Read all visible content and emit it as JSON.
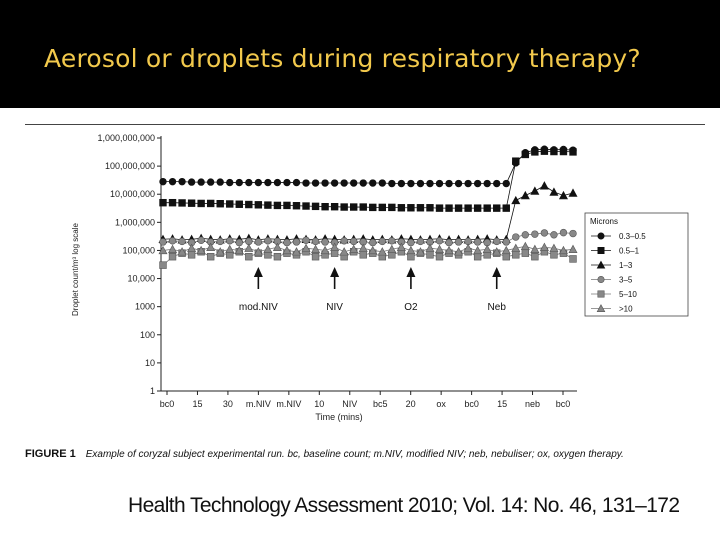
{
  "slide": {
    "title": "Aerosol or droplets during respiratory therapy?",
    "caption_label": "FIGURE 1",
    "caption_text": "Example of coryzal subject experimental run. bc, baseline count; m.NIV, modified NIV; neb, nebuliser; ox, oxygen therapy.",
    "citation": "Health Technology Assessment 2010; Vol. 14: No. 46, 131–172"
  },
  "chart_data": {
    "type": "line",
    "xlabel": "Time (mins)",
    "ylabel": "Droplet count/m³ log scale",
    "y_scale": "log",
    "ylim": [
      1,
      1000000000
    ],
    "y_ticks": [
      "1",
      "10",
      "100",
      "1000",
      "10,000",
      "100,000",
      "1,000,000",
      "10,000,000",
      "100,000,000",
      "1,000,000,000"
    ],
    "x_ticks": [
      "bc0",
      "15",
      "30",
      "m.NIV",
      "m.NIV",
      "10",
      "NIV",
      "bc5",
      "20",
      "ox",
      "bc0",
      "15",
      "neb",
      "bc0"
    ],
    "legend": {
      "title": "Microns",
      "position": "right",
      "entries": [
        "0.3–0.5",
        "0.5–1",
        "1–3",
        "3–5",
        "5–10",
        ">10"
      ]
    },
    "annotations": [
      {
        "label": "mod.NIV",
        "x": 10
      },
      {
        "label": "NIV",
        "x": 18
      },
      {
        "label": "O2",
        "x": 26
      },
      {
        "label": "Neb",
        "x": 35
      }
    ],
    "series": [
      {
        "name": "0.3–0.5",
        "marker": "circle",
        "color": "#111111",
        "values": [
          28000000,
          28000000,
          28000000,
          27000000,
          27000000,
          27000000,
          27000000,
          26000000,
          26000000,
          26000000,
          26000000,
          26000000,
          26000000,
          26000000,
          26000000,
          25000000,
          25000000,
          25000000,
          25000000,
          25000000,
          25000000,
          25000000,
          25000000,
          25000000,
          24000000,
          24000000,
          24000000,
          24000000,
          24000000,
          24000000,
          24000000,
          24000000,
          24000000,
          24000000,
          24000000,
          24000000,
          24000000,
          130000000,
          300000000,
          380000000,
          400000000,
          380000000,
          390000000,
          370000000
        ]
      },
      {
        "name": "0.5–1",
        "marker": "square",
        "color": "#111111",
        "values": [
          5000000,
          5000000,
          4900000,
          4800000,
          4700000,
          4700000,
          4600000,
          4500000,
          4400000,
          4300000,
          4200000,
          4100000,
          4000000,
          4000000,
          3900000,
          3800000,
          3700000,
          3600000,
          3600000,
          3500000,
          3500000,
          3500000,
          3400000,
          3400000,
          3400000,
          3300000,
          3300000,
          3300000,
          3300000,
          3200000,
          3200000,
          3200000,
          3200000,
          3200000,
          3200000,
          3200000,
          3200000,
          150000000,
          260000000,
          320000000,
          340000000,
          330000000,
          330000000,
          320000000
        ]
      },
      {
        "name": "1–3",
        "marker": "triangle",
        "color": "#111111",
        "values": [
          250000,
          260000,
          240000,
          250000,
          270000,
          250000,
          240000,
          260000,
          250000,
          270000,
          240000,
          260000,
          250000,
          240000,
          260000,
          250000,
          240000,
          260000,
          250000,
          240000,
          250000,
          260000,
          240000,
          250000,
          240000,
          260000,
          250000,
          240000,
          250000,
          260000,
          240000,
          250000,
          240000,
          250000,
          260000,
          240000,
          250000,
          6000000,
          9000000,
          13000000,
          20000000,
          12000000,
          9000000,
          11000000
        ]
      },
      {
        "name": "3–5",
        "marker": "circle",
        "color": "#888888",
        "values": [
          200000,
          220000,
          210000,
          190000,
          230000,
          200000,
          210000,
          220000,
          190000,
          210000,
          200000,
          220000,
          210000,
          190000,
          200000,
          230000,
          210000,
          200000,
          190000,
          220000,
          210000,
          200000,
          190000,
          210000,
          220000,
          200000,
          190000,
          210000,
          200000,
          220000,
          190000,
          200000,
          210000,
          200000,
          190000,
          210000,
          200000,
          300000,
          360000,
          380000,
          420000,
          360000,
          430000,
          400000
        ]
      },
      {
        "name": "5–10",
        "marker": "square",
        "color": "#888888",
        "values": [
          30000,
          60000,
          80000,
          70000,
          90000,
          60000,
          80000,
          70000,
          90000,
          60000,
          80000,
          70000,
          60000,
          80000,
          70000,
          90000,
          60000,
          70000,
          80000,
          60000,
          90000,
          70000,
          80000,
          60000,
          70000,
          90000,
          60000,
          80000,
          70000,
          60000,
          80000,
          70000,
          90000,
          60000,
          70000,
          80000,
          60000,
          70000,
          80000,
          60000,
          90000,
          70000,
          80000,
          50000
        ]
      },
      {
        "name": ">10",
        "marker": "triangle",
        "color": "#888888",
        "values": [
          100000,
          110000,
          90000,
          120000,
          100000,
          130000,
          90000,
          110000,
          100000,
          120000,
          90000,
          110000,
          130000,
          100000,
          90000,
          120000,
          110000,
          100000,
          130000,
          90000,
          110000,
          120000,
          100000,
          90000,
          110000,
          130000,
          100000,
          90000,
          120000,
          110000,
          100000,
          90000,
          120000,
          100000,
          110000,
          90000,
          100000,
          120000,
          140000,
          110000,
          130000,
          120000,
          100000,
          110000
        ]
      }
    ]
  }
}
